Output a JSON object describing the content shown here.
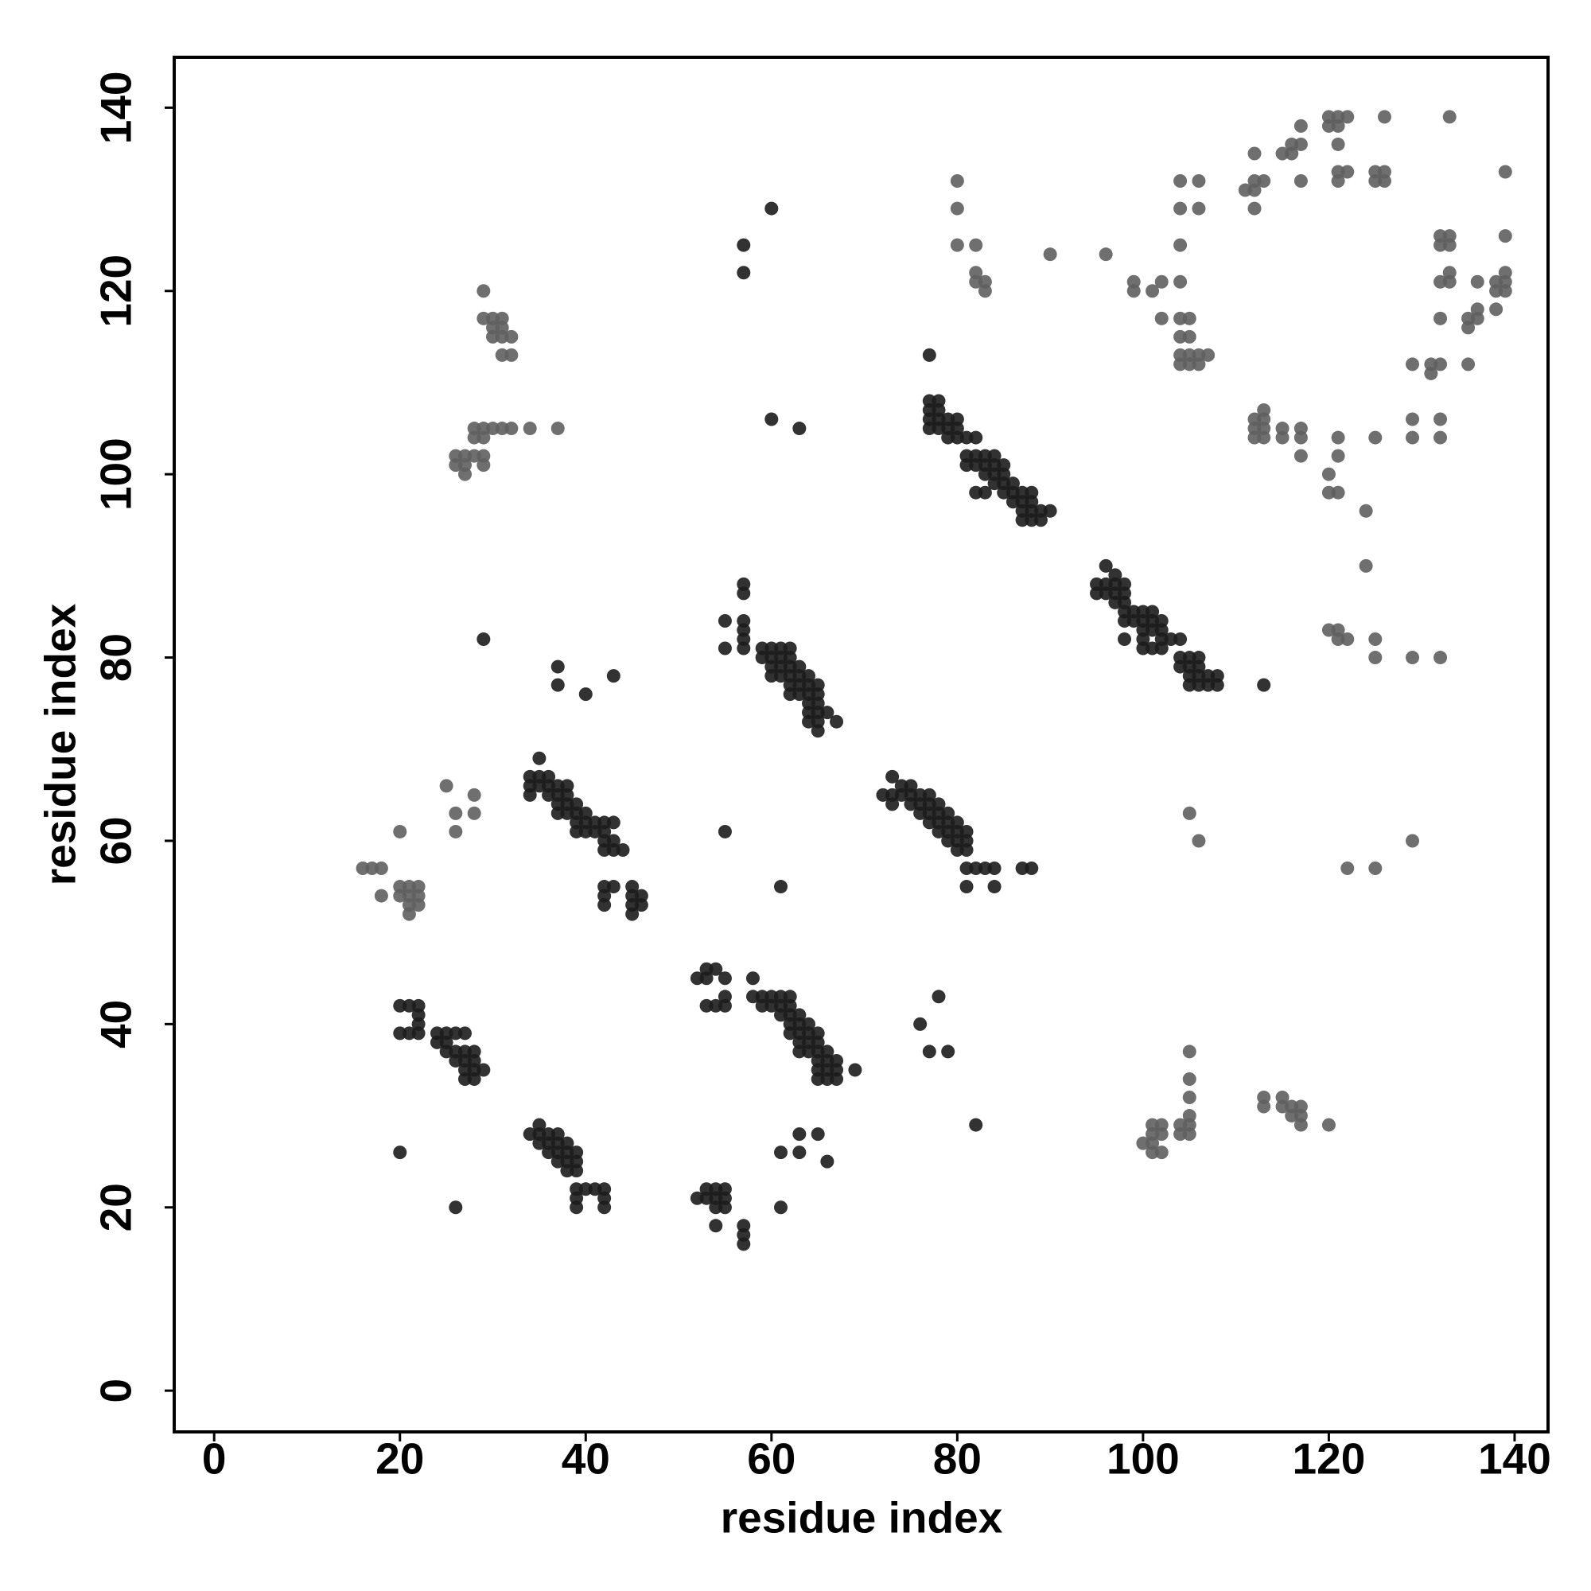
{
  "chart_data": {
    "type": "scatter",
    "x_label": "residue index",
    "y_label": "residue index",
    "xlim": [
      -4.3,
      143.6
    ],
    "ylim": [
      -4.5,
      145.5
    ],
    "xticks": [
      0,
      20,
      40,
      60,
      80,
      100,
      120,
      140
    ],
    "yticks": [
      0,
      20,
      40,
      60,
      80,
      100,
      120,
      140
    ],
    "grid": false,
    "series": [
      {
        "color": "#1c1c1c",
        "x": [
          21,
          22,
          20,
          20,
          21,
          22,
          22,
          22,
          24,
          25,
          25,
          26,
          27,
          24,
          25,
          26,
          27,
          28,
          26,
          27,
          28,
          27,
          28,
          29,
          27,
          28,
          34,
          35,
          36,
          37,
          35,
          36,
          37,
          38,
          35,
          36,
          37,
          38,
          39,
          37,
          38,
          39,
          39,
          38,
          39,
          40,
          41,
          42,
          39,
          42,
          39,
          42,
          26,
          20,
          34,
          35,
          36,
          34,
          35,
          36,
          37,
          38,
          35,
          34,
          36,
          37,
          38,
          37,
          38,
          39,
          37,
          38,
          39,
          40,
          39,
          40,
          41,
          42,
          43,
          39,
          40,
          41,
          42,
          42,
          43,
          42,
          43,
          44,
          42,
          43,
          42,
          42,
          45,
          45,
          46,
          45,
          46,
          45,
          37,
          37,
          40,
          43,
          29,
          52,
          53,
          54,
          55,
          53,
          53,
          54,
          55,
          55,
          52,
          53,
          54,
          55,
          53,
          54,
          55,
          54,
          55,
          54,
          57,
          57,
          57,
          61,
          61,
          63,
          63,
          65,
          66,
          58,
          58,
          59,
          60,
          61,
          62,
          59,
          60,
          61,
          62,
          61,
          62,
          63,
          62,
          63,
          64,
          62,
          63,
          64,
          65,
          63,
          64,
          65,
          63,
          64,
          65,
          66,
          65,
          66,
          67,
          65,
          66,
          67,
          65,
          66,
          67,
          69,
          55,
          61,
          57,
          57,
          55,
          57,
          57,
          57,
          55,
          57,
          59,
          60,
          61,
          62,
          59,
          60,
          61,
          62,
          60,
          61,
          62,
          63,
          60,
          61,
          62,
          63,
          64,
          62,
          63,
          64,
          65,
          62,
          63,
          64,
          65,
          64,
          65,
          64,
          65,
          66,
          64,
          65,
          67,
          65,
          60,
          63,
          57,
          57,
          60,
          72,
          73,
          74,
          75,
          73,
          74,
          75,
          76,
          77,
          73,
          75,
          76,
          77,
          78,
          76,
          77,
          78,
          79,
          77,
          78,
          79,
          80,
          78,
          79,
          80,
          81,
          79,
          80,
          81,
          80,
          81,
          81,
          82,
          83,
          84,
          81,
          84,
          87,
          88,
          76,
          78,
          77,
          79,
          82,
          77,
          78,
          77,
          78,
          77,
          78,
          79,
          80,
          77,
          78,
          79,
          80,
          81,
          82,
          79,
          80,
          81,
          82,
          83,
          84,
          81,
          82,
          83,
          84,
          85,
          83,
          84,
          85,
          84,
          85,
          86,
          82,
          83,
          85,
          86,
          87,
          88,
          86,
          87,
          88,
          87,
          88,
          89,
          90,
          87,
          88,
          89,
          77,
          95,
          96,
          97,
          95,
          96,
          97,
          98,
          96,
          97,
          98,
          97,
          98,
          98,
          99,
          100,
          101,
          98,
          99,
          100,
          101,
          102,
          100,
          101,
          102,
          98,
          100,
          102,
          103,
          104,
          100,
          101,
          102,
          104,
          105,
          106,
          104,
          105,
          106,
          105,
          106,
          107,
          108,
          105,
          106,
          107,
          108,
          113
        ],
        "values": [
          39,
          39,
          39,
          42,
          42,
          42,
          41,
          40,
          39,
          39,
          38,
          39,
          39,
          38,
          37,
          37,
          37,
          37,
          36,
          36,
          36,
          35,
          35,
          35,
          34,
          34,
          28,
          28,
          28,
          28,
          27,
          27,
          27,
          27,
          29,
          26,
          26,
          26,
          26,
          25,
          25,
          25,
          24,
          24,
          22,
          22,
          22,
          22,
          21,
          21,
          20,
          20,
          20,
          26,
          67,
          67,
          67,
          66,
          66,
          66,
          66,
          66,
          69,
          65,
          65,
          65,
          65,
          64,
          64,
          64,
          63,
          63,
          63,
          63,
          62,
          62,
          62,
          62,
          62,
          61,
          61,
          61,
          61,
          60,
          60,
          59,
          59,
          59,
          55,
          55,
          54,
          53,
          55,
          54,
          54,
          53,
          53,
          52,
          79,
          77,
          76,
          78,
          82,
          45,
          46,
          46,
          45,
          45,
          42,
          42,
          42,
          43,
          21,
          22,
          22,
          22,
          21,
          21,
          21,
          20,
          20,
          18,
          18,
          17,
          16,
          20,
          26,
          26,
          28,
          28,
          25,
          45,
          43,
          43,
          43,
          43,
          43,
          42,
          42,
          42,
          42,
          41,
          41,
          41,
          40,
          40,
          40,
          39,
          39,
          39,
          39,
          38,
          38,
          38,
          37,
          37,
          37,
          37,
          36,
          36,
          36,
          35,
          35,
          35,
          34,
          34,
          34,
          35,
          61,
          55,
          88,
          87,
          84,
          84,
          83,
          82,
          81,
          81,
          81,
          81,
          81,
          81,
          80,
          80,
          80,
          80,
          79,
          79,
          79,
          79,
          78,
          78,
          78,
          78,
          78,
          77,
          77,
          77,
          77,
          76,
          76,
          76,
          76,
          75,
          75,
          74,
          74,
          74,
          73,
          73,
          73,
          72,
          106,
          105,
          125,
          122,
          129,
          65,
          67,
          66,
          66,
          65,
          65,
          65,
          65,
          65,
          64,
          64,
          64,
          64,
          64,
          63,
          63,
          63,
          63,
          62,
          62,
          62,
          62,
          61,
          61,
          61,
          61,
          60,
          60,
          60,
          59,
          59,
          57,
          57,
          57,
          57,
          55,
          55,
          57,
          57,
          40,
          43,
          37,
          37,
          29,
          108,
          108,
          107,
          107,
          106,
          106,
          106,
          106,
          105,
          105,
          105,
          105,
          104,
          104,
          104,
          104,
          102,
          102,
          102,
          102,
          101,
          101,
          101,
          101,
          101,
          100,
          100,
          100,
          99,
          99,
          99,
          98,
          98,
          98,
          98,
          98,
          98,
          97,
          97,
          97,
          96,
          96,
          96,
          96,
          95,
          95,
          95,
          113,
          88,
          90,
          89,
          87,
          88,
          88,
          88,
          87,
          87,
          87,
          86,
          86,
          85,
          85,
          85,
          85,
          84,
          84,
          84,
          84,
          84,
          83,
          83,
          83,
          82,
          82,
          82,
          82,
          82,
          81,
          81,
          81,
          80,
          80,
          80,
          79,
          79,
          79,
          78,
          78,
          78,
          78,
          77,
          77,
          77,
          77,
          77
        ]
      },
      {
        "color": "#5f5f5f",
        "x": [
          16,
          17,
          18,
          18,
          20,
          20,
          21,
          22,
          20,
          21,
          22,
          21,
          22,
          21,
          25,
          26,
          28,
          26,
          28,
          29,
          29,
          30,
          31,
          30,
          31,
          30,
          31,
          32,
          31,
          32,
          26,
          27,
          28,
          29,
          26,
          27,
          29,
          27,
          28,
          29,
          30,
          31,
          32,
          34,
          37,
          28,
          29,
          80,
          80,
          80,
          82,
          82,
          83,
          82,
          83,
          90,
          96,
          99,
          99,
          101,
          102,
          102,
          104,
          104,
          105,
          104,
          105,
          104,
          105,
          106,
          107,
          104,
          105,
          106,
          104,
          104,
          104,
          106,
          106,
          111,
          112,
          112,
          112,
          112,
          112,
          113,
          113,
          112,
          113,
          112,
          113,
          115,
          115,
          117,
          117,
          117,
          121,
          121,
          120,
          120,
          121,
          125,
          124,
          124,
          120,
          121,
          121,
          122,
          125,
          125,
          129,
          132,
          113,
          115,
          116,
          116,
          117,
          117,
          117,
          120,
          121,
          122,
          120,
          121,
          121,
          121,
          121,
          122,
          125,
          126,
          125,
          126,
          126,
          133,
          132,
          133,
          132,
          133,
          133,
          132,
          133,
          132,
          135,
          136,
          136,
          135,
          136,
          138,
          139,
          139,
          138,
          139,
          138,
          139,
          139,
          129,
          131,
          132,
          131,
          135,
          129,
          132,
          129,
          132,
          100,
          101,
          101,
          102,
          101,
          102,
          101,
          102,
          104,
          105,
          104,
          105,
          105,
          105,
          105,
          105,
          113,
          113,
          115,
          115,
          116,
          116,
          117,
          117,
          117,
          120,
          105,
          106,
          122,
          125,
          129
        ],
        "values": [
          57,
          57,
          57,
          54,
          61,
          55,
          55,
          55,
          54,
          54,
          54,
          53,
          53,
          52,
          66,
          63,
          63,
          61,
          65,
          120,
          117,
          117,
          117,
          116,
          116,
          115,
          115,
          115,
          113,
          113,
          102,
          102,
          102,
          102,
          101,
          101,
          101,
          100,
          105,
          105,
          105,
          105,
          105,
          105,
          105,
          104,
          104,
          132,
          129,
          125,
          125,
          122,
          121,
          121,
          120,
          124,
          124,
          121,
          120,
          120,
          121,
          117,
          121,
          117,
          117,
          115,
          115,
          113,
          113,
          113,
          113,
          112,
          112,
          112,
          125,
          129,
          132,
          132,
          129,
          131,
          131,
          132,
          129,
          135,
          106,
          106,
          107,
          105,
          105,
          104,
          104,
          105,
          104,
          105,
          104,
          102,
          104,
          102,
          100,
          98,
          98,
          104,
          96,
          90,
          83,
          83,
          82,
          82,
          82,
          80,
          80,
          80,
          132,
          135,
          135,
          136,
          136,
          138,
          132,
          139,
          139,
          139,
          138,
          138,
          136,
          133,
          132,
          133,
          133,
          133,
          132,
          132,
          139,
          139,
          126,
          126,
          125,
          125,
          122,
          121,
          121,
          117,
          117,
          117,
          118,
          116,
          121,
          121,
          121,
          122,
          120,
          120,
          118,
          126,
          133,
          112,
          112,
          112,
          111,
          112,
          106,
          106,
          104,
          104,
          27,
          27,
          29,
          29,
          26,
          26,
          28,
          28,
          28,
          28,
          29,
          29,
          30,
          32,
          34,
          37,
          32,
          31,
          32,
          31,
          31,
          30,
          31,
          30,
          29,
          29,
          63,
          60,
          57,
          57,
          60
        ]
      }
    ]
  }
}
